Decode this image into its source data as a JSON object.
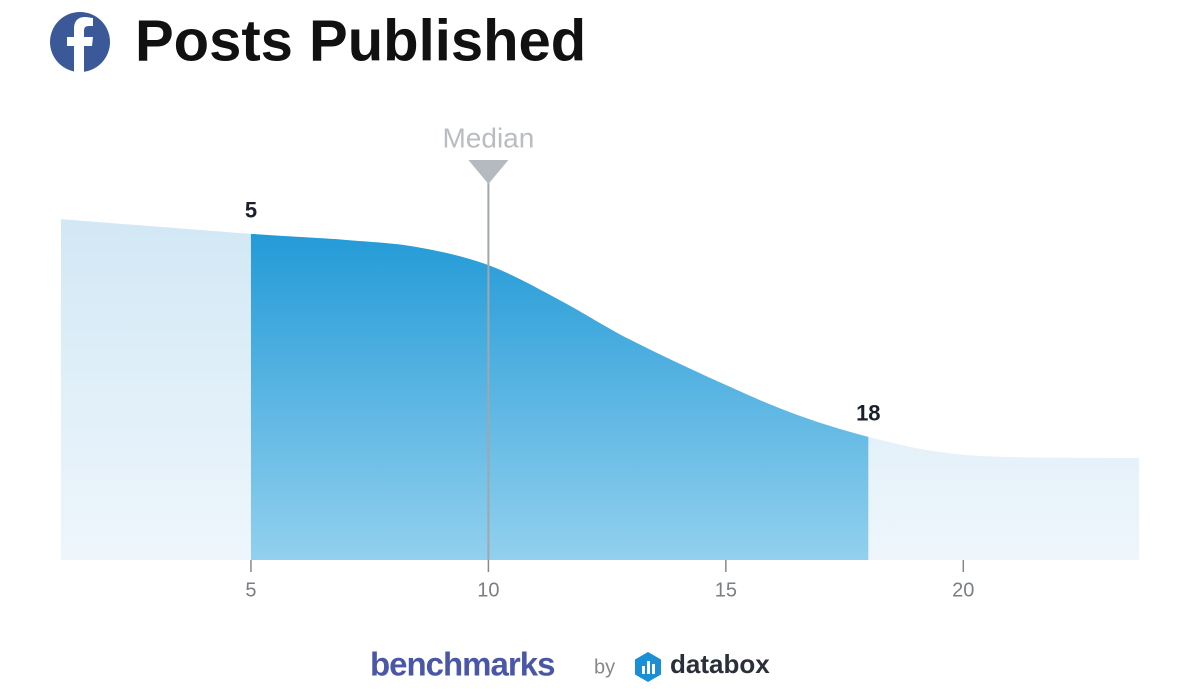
{
  "chart_data": {
    "type": "area",
    "title": "Posts Published",
    "x": [
      1,
      5,
      7,
      8.5,
      10,
      11.5,
      13,
      15,
      16.5,
      18,
      19.5,
      21,
      23.7
    ],
    "values": [
      94.7,
      90.6,
      88.9,
      86.9,
      81.9,
      72.2,
      61.1,
      48.6,
      40.3,
      34.2,
      30,
      28.6,
      28.3
    ],
    "xlim": [
      1,
      23.7
    ],
    "ylim": [
      0,
      100
    ],
    "xticks": [
      5,
      10,
      15,
      20
    ],
    "color": "#1e98d6",
    "area_color": "#d2e8f5",
    "highlight": {
      "from": 5,
      "to": 18
    },
    "median": {
      "label": "Median",
      "value": 10
    },
    "footer": {
      "brand": "benchmarks",
      "by": "by",
      "partner": "databox"
    }
  }
}
